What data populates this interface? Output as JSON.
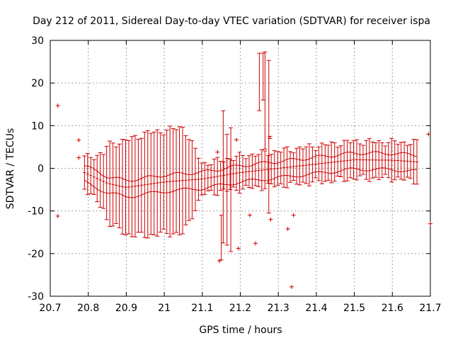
{
  "chart_data": {
    "type": "scatter",
    "title": "Day 212 of 2011, Sidereal Day-to-day VTEC variation (SDTVAR) for receiver ispa",
    "xlabel": "GPS time / hours",
    "ylabel": "SDTVAR / TECUs",
    "xlim": [
      20.7,
      21.7
    ],
    "ylim": [
      -30,
      30
    ],
    "xticks": [
      "20.7",
      "20.8",
      "20.9",
      "21",
      "21.1",
      "21.2",
      "21.3",
      "21.4",
      "21.5",
      "21.6",
      "21.7"
    ],
    "yticks": [
      "-30",
      "-20",
      "-10",
      "0",
      "10",
      "20",
      "30"
    ],
    "grid": true,
    "legend": "none",
    "color": "#cc0000",
    "band": {
      "x_start": 20.79,
      "x_end": 21.665,
      "step": 0.00833,
      "center": [
        [
          20.79,
          -1.0
        ],
        [
          20.85,
          -3.5
        ],
        [
          20.9,
          -4.5
        ],
        [
          21.0,
          -3.2
        ],
        [
          21.1,
          -2.5
        ],
        [
          21.2,
          -1.0
        ],
        [
          21.3,
          0.0
        ],
        [
          21.4,
          1.0
        ],
        [
          21.5,
          2.0
        ],
        [
          21.6,
          1.9
        ],
        [
          21.665,
          1.5
        ]
      ],
      "halfwidth": [
        [
          20.79,
          3.5
        ],
        [
          20.84,
          6.5
        ],
        [
          20.85,
          9.0
        ],
        [
          20.9,
          11.0
        ],
        [
          20.95,
          12.0
        ],
        [
          21.0,
          12.0
        ],
        [
          21.05,
          12.5
        ],
        [
          21.1,
          3.5
        ],
        [
          21.2,
          3.8
        ],
        [
          21.3,
          4.0
        ],
        [
          21.4,
          4.2
        ],
        [
          21.5,
          4.3
        ],
        [
          21.6,
          4.2
        ],
        [
          21.665,
          4.5
        ]
      ]
    },
    "outliers": [
      {
        "x": 20.72,
        "y": 14.7
      },
      {
        "x": 20.72,
        "y": -11.2
      },
      {
        "x": 20.775,
        "y": 6.6
      },
      {
        "x": 20.775,
        "y": 2.5
      },
      {
        "x": 21.14,
        "y": 3.8
      },
      {
        "x": 21.145,
        "y": -21.7
      },
      {
        "x": 21.19,
        "y": 6.7
      },
      {
        "x": 21.195,
        "y": -18.8
      },
      {
        "x": 21.225,
        "y": -11.0
      },
      {
        "x": 21.24,
        "y": -17.6
      },
      {
        "x": 21.28,
        "y": -12.0
      },
      {
        "x": 21.325,
        "y": -14.2
      },
      {
        "x": 21.335,
        "y": -27.8
      },
      {
        "x": 21.34,
        "y": -11.0
      },
      {
        "x": 21.695,
        "y": 8.0
      },
      {
        "x": 21.7,
        "y": -13.0
      }
    ],
    "spikes": [
      {
        "x": 21.15,
        "low": -21.5,
        "high": -11.0
      },
      {
        "x": 21.155,
        "low": -17.5,
        "high": 13.5
      },
      {
        "x": 21.165,
        "low": -18.0,
        "high": 8.0
      },
      {
        "x": 21.175,
        "low": -19.5,
        "high": 9.5
      },
      {
        "x": 21.25,
        "low": 13.5,
        "high": 27.0
      },
      {
        "x": 21.26,
        "low": 16.0,
        "high": 27.0
      },
      {
        "x": 21.265,
        "low": 4.5,
        "high": 27.3
      },
      {
        "x": 21.275,
        "low": -10.5,
        "high": 25.3
      },
      {
        "x": 21.278,
        "low": 7.0,
        "high": 7.5
      }
    ]
  }
}
